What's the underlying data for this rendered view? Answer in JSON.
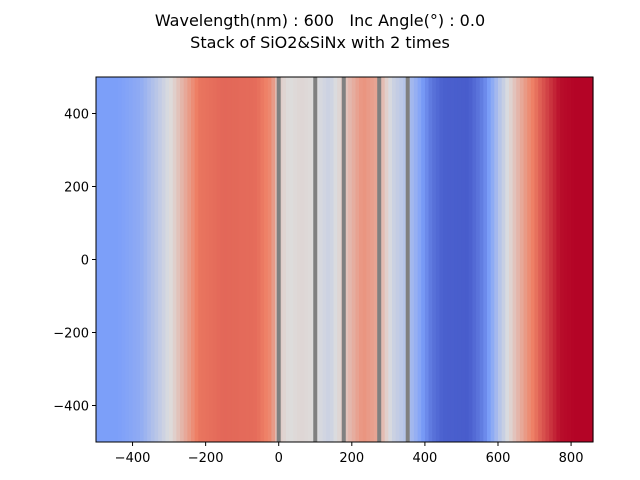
{
  "chart_data": {
    "type": "heatmap",
    "title_line1": "Wavelength(nm) : 600   Inc Angle(°) : 0.0",
    "title_line2": "Stack of SiO2&SiNx with 2 times",
    "xlabel": "",
    "ylabel": "",
    "xlim": [
      -500,
      860
    ],
    "ylim": [
      -500,
      500
    ],
    "x_ticks": [
      -400,
      -200,
      0,
      200,
      400,
      600,
      800
    ],
    "y_ticks": [
      400,
      200,
      0,
      -200,
      -400
    ],
    "tick_labels_x": [
      "−400",
      "−200",
      "0",
      "200",
      "400",
      "600",
      "800"
    ],
    "tick_labels_y": [
      "400",
      "200",
      "0",
      "−200",
      "−400"
    ],
    "colormap": "coolwarm",
    "field_profile_x": [
      -500,
      -440,
      -380,
      -330,
      -290,
      -250,
      -220,
      -150,
      -60,
      -20,
      0,
      30,
      60,
      100,
      140,
      180,
      230,
      275,
      310,
      355,
      380,
      420,
      450,
      520,
      560,
      600,
      640,
      680,
      720,
      770,
      810,
      860
    ],
    "field_profile_value": [
      0.25,
      0.25,
      0.3,
      0.42,
      0.52,
      0.66,
      0.77,
      0.8,
      0.79,
      0.72,
      0.55,
      0.5,
      0.52,
      0.5,
      0.45,
      0.56,
      0.7,
      0.64,
      0.46,
      0.38,
      0.3,
      0.12,
      0.06,
      0.05,
      0.16,
      0.38,
      0.55,
      0.7,
      0.83,
      0.98,
      1.0,
      1.0
    ],
    "layer_boundaries_x": [
      0,
      100,
      178,
      275,
      353
    ],
    "boundary_color": "#808080"
  }
}
